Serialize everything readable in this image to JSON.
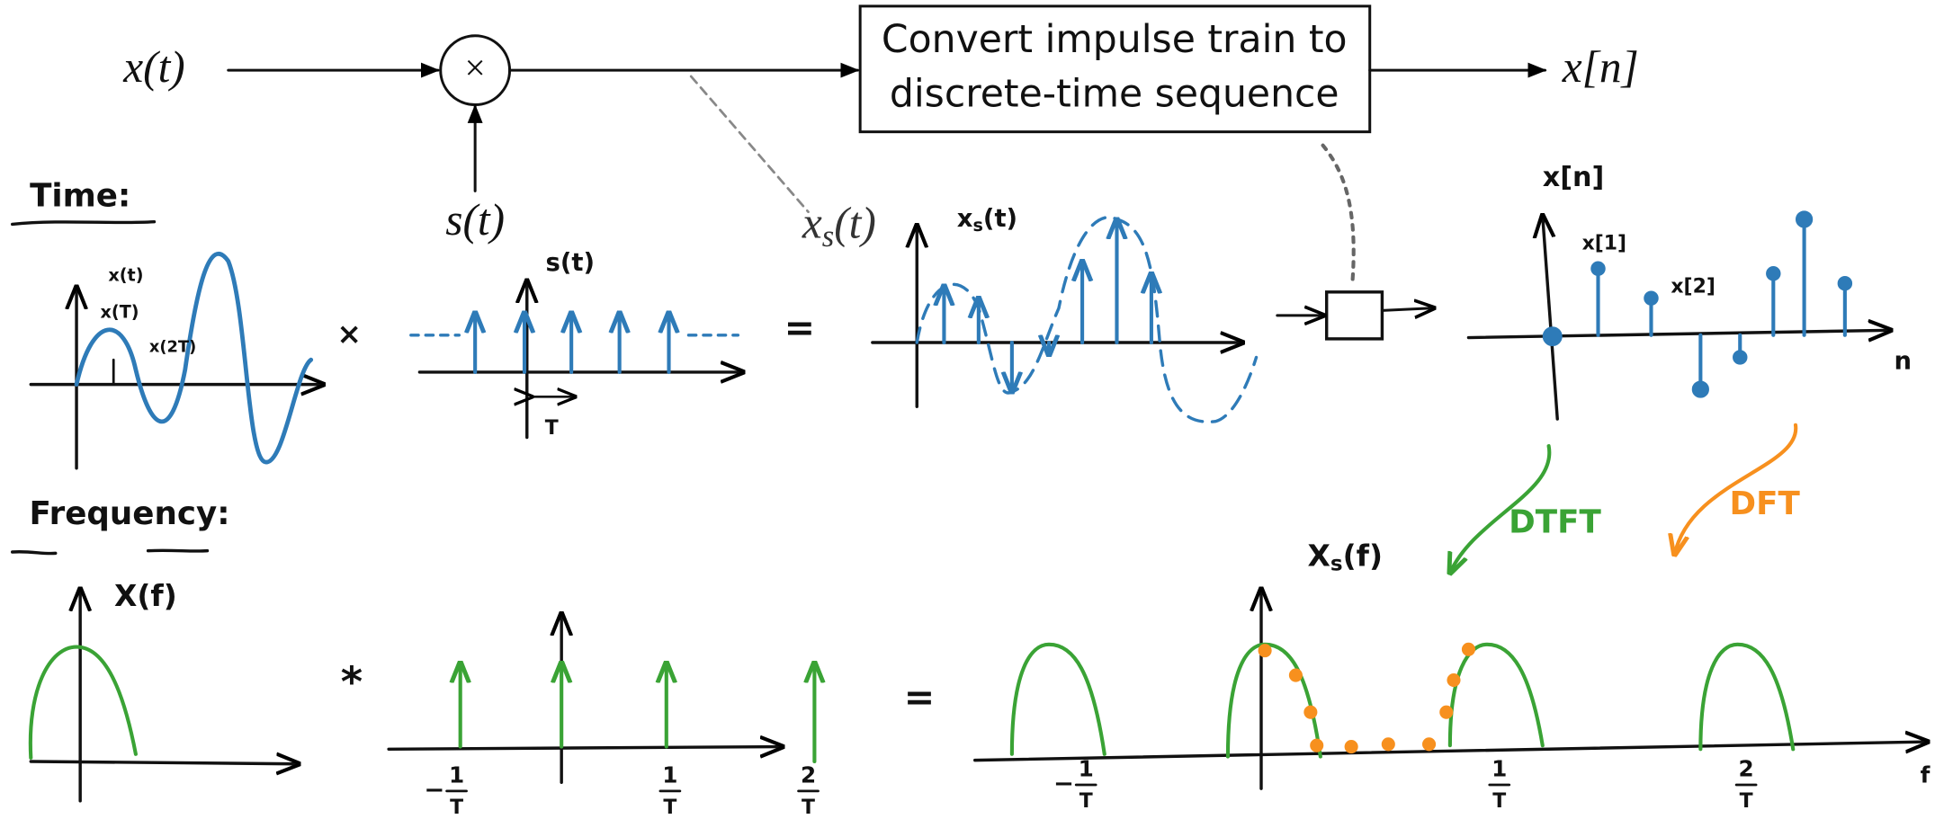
{
  "block_diagram": {
    "input": "x(t)",
    "multiplier": "×",
    "sampling_signal": "s(t)",
    "converter": {
      "line1": "Convert impulse train to",
      "line2": "discrete-time sequence"
    },
    "output": "x[n]",
    "sampled_signal": {
      "base": "x",
      "subscript": "s",
      "argument": "(t)"
    }
  },
  "time_section": {
    "heading": "Time:",
    "signal_labels": [
      "x(t)",
      "x(T)",
      "x(2T)"
    ],
    "times_symbol": "×",
    "impulse_train_label": "s(t)",
    "period_label": "T",
    "equals_symbol": "=",
    "sampled_label": {
      "base": "x",
      "subscript": "s",
      "argument": "(t)"
    },
    "sequence_label": "x[n]",
    "sample_labels": [
      "x[1]",
      "x[2]"
    ],
    "index_axis_label": "n"
  },
  "frequency_section": {
    "heading": "Frequency:",
    "dtft_label": "DTFT",
    "dft_label": "DFT",
    "spectrum_label": "X(f)",
    "convolution_symbol": "*",
    "impulse_ticks": [
      {
        "sign": "−",
        "numerator": "1",
        "denominator": "T"
      },
      {
        "numerator": "1",
        "denominator": "T"
      },
      {
        "numerator": "2",
        "denominator": "T"
      }
    ],
    "equals_symbol": "=",
    "sampled_spectrum_label": {
      "base": "X",
      "subscript": "s",
      "argument": "(f)"
    },
    "frequency_axis_label": "f",
    "spectrum_ticks": [
      {
        "sign": "−",
        "numerator": "1",
        "denominator": "T"
      },
      {
        "numerator": "1",
        "denominator": "T"
      },
      {
        "numerator": "2",
        "denominator": "T"
      }
    ]
  }
}
